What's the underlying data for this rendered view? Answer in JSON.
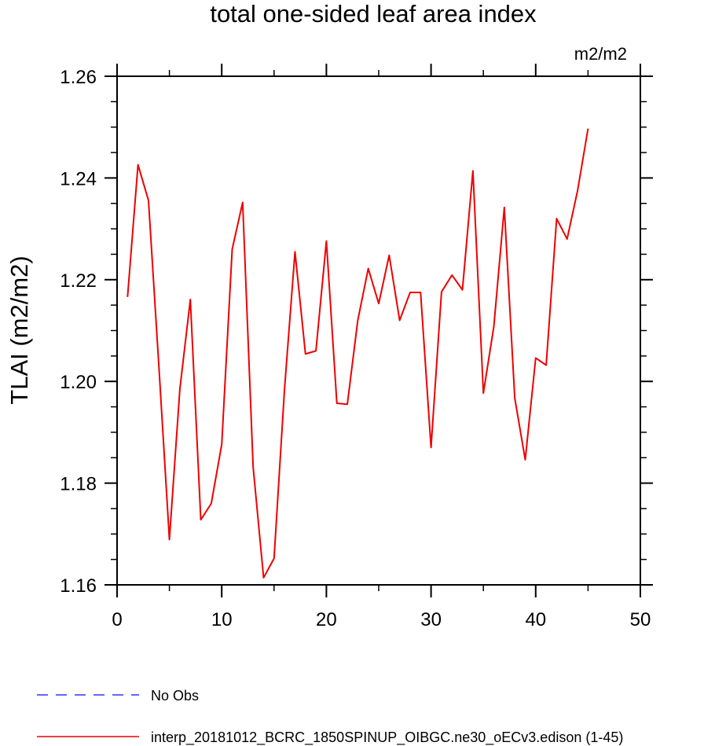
{
  "chart_data": {
    "type": "line",
    "title": "total one-sided leaf area index",
    "units": "m2/m2",
    "xlabel": "",
    "ylabel": "TLAI  (m2/m2)",
    "xlim": [
      0,
      50
    ],
    "ylim": [
      1.16,
      1.26
    ],
    "xticks": [
      "0",
      "10",
      "20",
      "30",
      "40",
      "50"
    ],
    "yticks": [
      "1.16",
      "1.18",
      "1.20",
      "1.22",
      "1.24",
      "1.26"
    ],
    "grid": false,
    "legend_position": "bottom",
    "series": [
      {
        "name": "No Obs",
        "color": "#3333ff",
        "dash": "dashed",
        "x": [],
        "values": []
      },
      {
        "name": "interp_20181012_BCRC_1850SPINUP_OIBGC.ne30_oECv3.edison (1-45)",
        "color": "#ee0000",
        "dash": "solid",
        "x": [
          1,
          2,
          3,
          4,
          5,
          6,
          7,
          8,
          9,
          10,
          11,
          12,
          13,
          14,
          15,
          16,
          17,
          18,
          19,
          20,
          21,
          22,
          23,
          24,
          25,
          26,
          27,
          28,
          29,
          30,
          31,
          32,
          33,
          34,
          35,
          36,
          37,
          38,
          39,
          40,
          41,
          42,
          43,
          44,
          45
        ],
        "values": [
          1.2166,
          1.2426,
          1.2356,
          1.2028,
          1.1689,
          1.1985,
          1.2161,
          1.1728,
          1.176,
          1.1876,
          1.226,
          1.2352,
          1.1832,
          1.1614,
          1.1652,
          1.1985,
          1.2255,
          1.2054,
          1.206,
          1.2276,
          1.1957,
          1.1955,
          1.212,
          1.2222,
          1.2153,
          1.2248,
          1.212,
          1.2175,
          1.2175,
          1.187,
          1.2176,
          1.2209,
          1.218,
          1.2414,
          1.1977,
          1.2108,
          1.2342,
          1.1967,
          1.1846,
          1.2046,
          1.2032,
          1.232,
          1.228,
          1.2375,
          1.2497
        ]
      }
    ]
  }
}
